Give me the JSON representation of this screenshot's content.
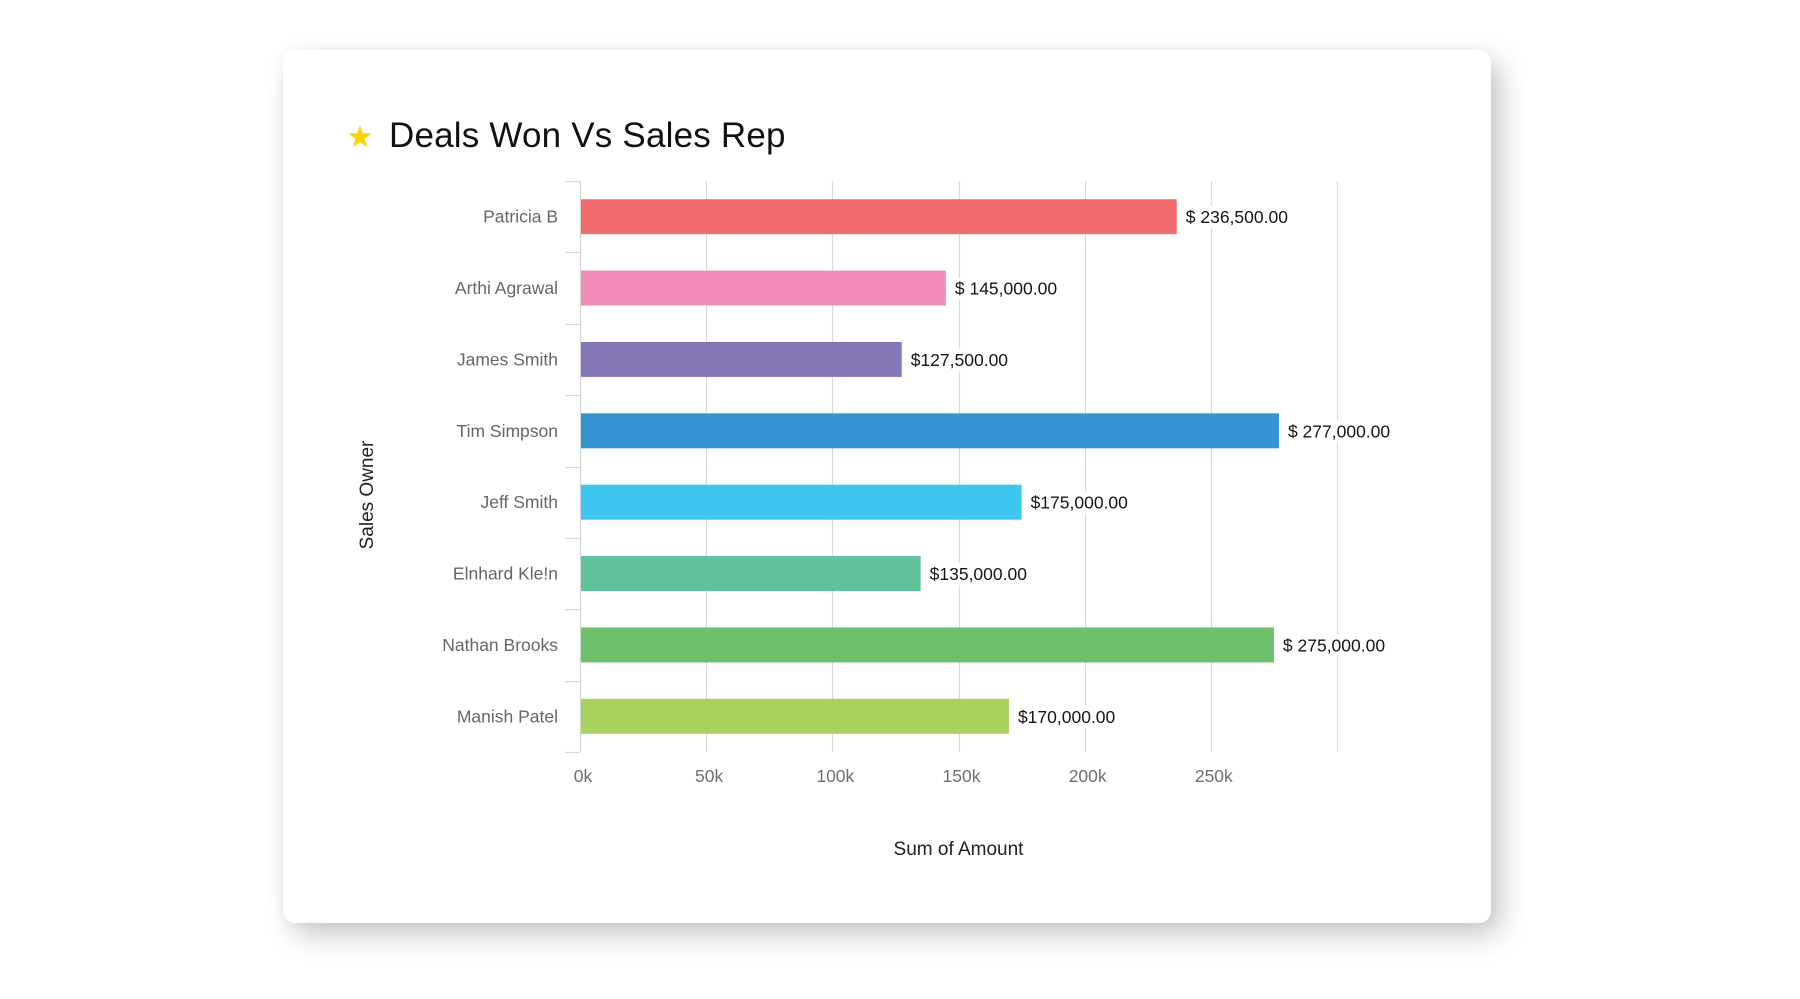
{
  "header": {
    "title": "Deals Won Vs Sales Rep",
    "favorite_icon": "star-icon",
    "favorite_color": "#FFD30A"
  },
  "chart_data": {
    "type": "bar",
    "orientation": "horizontal",
    "title": "Deals Won Vs Sales Rep",
    "xlabel": "Sum of Amount",
    "ylabel": "Sales Owner",
    "xlim": [
      0,
      300000
    ],
    "x_ticks": [
      0,
      50000,
      100000,
      150000,
      200000,
      250000,
      300000
    ],
    "x_tick_labels": [
      "0k",
      "50k",
      "100k",
      "150k",
      "200k",
      "250k",
      ""
    ],
    "grid": true,
    "categories": [
      "Patricia B",
      "Arthi Agrawal",
      "James Smith",
      "Tim Simpson",
      "Jeff Smith",
      "Elnhard Kle!n",
      "Nathan Brooks",
      "Manish Patel"
    ],
    "values": [
      236500,
      145000,
      127500,
      277000,
      175000,
      135000,
      275000,
      170000
    ],
    "value_labels": [
      "$ 236,500.00",
      "$ 145,000.00",
      "$127,500.00",
      "$ 277,000.00",
      "$175,000.00",
      "$135,000.00",
      "$ 275,000.00",
      "$170,000.00"
    ],
    "colors": [
      "#F26B6E",
      "#F28CB9",
      "#8576B6",
      "#3593D2",
      "#3DC6F0",
      "#5FC29B",
      "#6EC06C",
      "#A9D15E"
    ]
  }
}
